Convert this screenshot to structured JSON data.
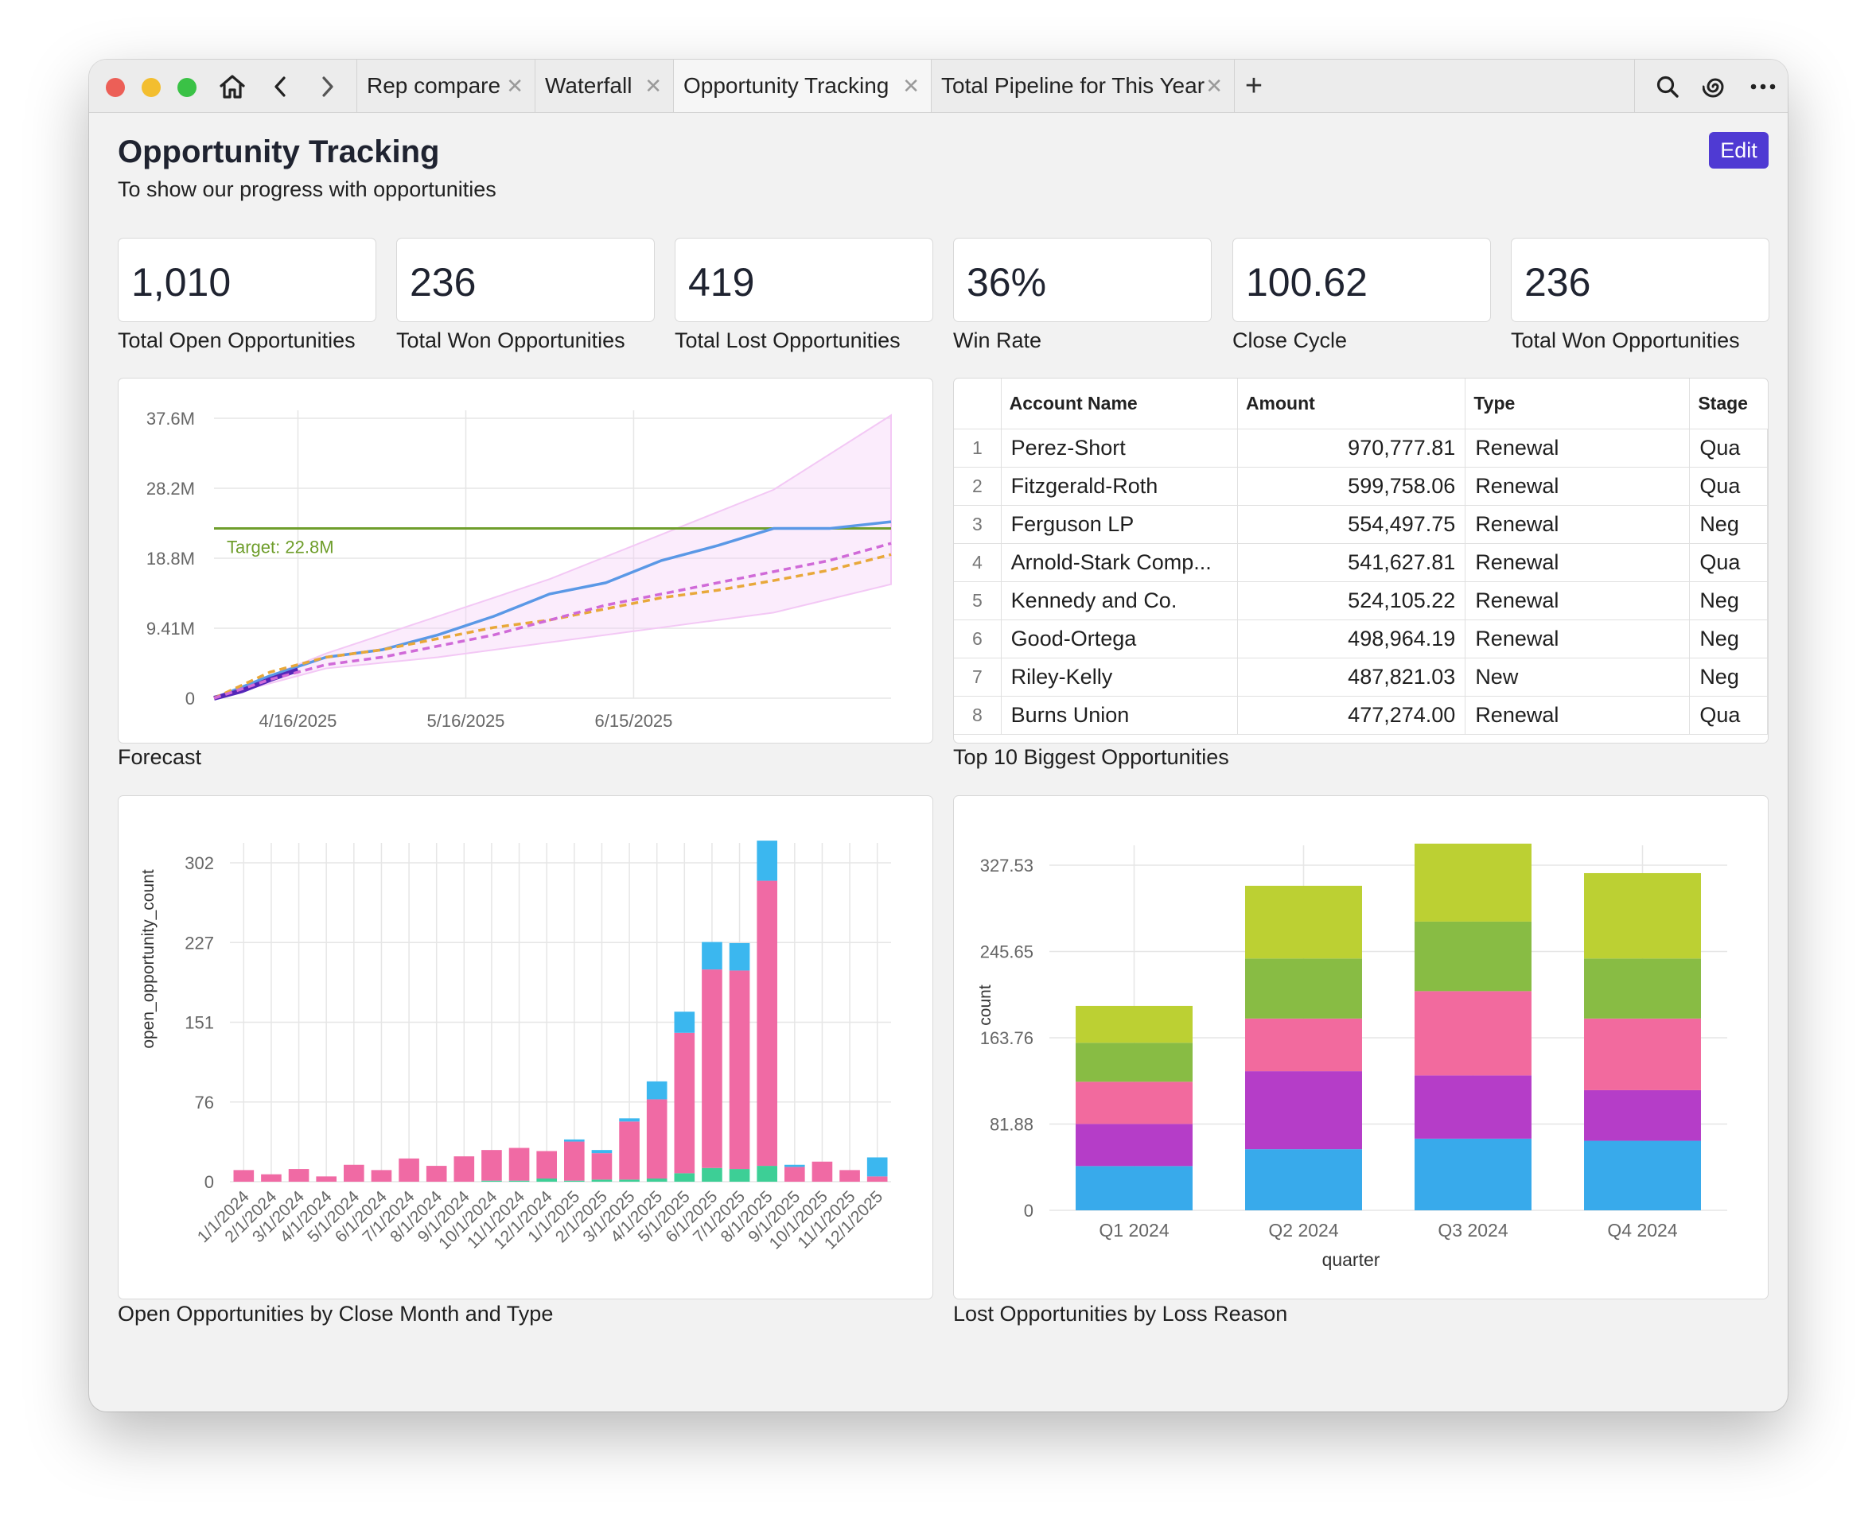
{
  "tabs": [
    {
      "label": "Rep compare"
    },
    {
      "label": "Waterfall"
    },
    {
      "label": "Opportunity Tracking"
    },
    {
      "label": "Total Pipeline for This Year"
    }
  ],
  "header": {
    "title": "Opportunity Tracking",
    "subtitle": "To show our progress with opportunities",
    "edit_label": "Edit"
  },
  "kpis": [
    {
      "value": "1,010",
      "label": "Total Open Opportunities"
    },
    {
      "value": "236",
      "label": "Total Won Opportunities"
    },
    {
      "value": "419",
      "label": "Total Lost Opportunities"
    },
    {
      "value": "36%",
      "label": "Win Rate"
    },
    {
      "value": "100.62",
      "label": "Close Cycle"
    },
    {
      "value": "236",
      "label": "Total Won Opportunities"
    }
  ],
  "cards": {
    "forecast": "Forecast",
    "top10": "Top 10 Biggest Opportunities",
    "open_by_month": "Open Opportunities by Close Month and Type",
    "lost_by_reason": "Lost Opportunities by Loss Reason"
  },
  "table": {
    "columns": [
      "Account Name",
      "Amount",
      "Type",
      "Stage"
    ],
    "rows": [
      {
        "idx": "1",
        "account": "Perez-Short",
        "amount": "970,777.81",
        "type": "Renewal",
        "stage": "Qua"
      },
      {
        "idx": "2",
        "account": "Fitzgerald-Roth",
        "amount": "599,758.06",
        "type": "Renewal",
        "stage": "Qua"
      },
      {
        "idx": "3",
        "account": "Ferguson LP",
        "amount": "554,497.75",
        "type": "Renewal",
        "stage": "Neg"
      },
      {
        "idx": "4",
        "account": "Arnold-Stark Comp...",
        "amount": "541,627.81",
        "type": "Renewal",
        "stage": "Qua"
      },
      {
        "idx": "5",
        "account": "Kennedy and Co.",
        "amount": "524,105.22",
        "type": "Renewal",
        "stage": "Neg"
      },
      {
        "idx": "6",
        "account": "Good-Ortega",
        "amount": "498,964.19",
        "type": "Renewal",
        "stage": "Neg"
      },
      {
        "idx": "7",
        "account": "Riley-Kelly",
        "amount": "487,821.03",
        "type": "New",
        "stage": "Neg"
      },
      {
        "idx": "8",
        "account": "Burns Union",
        "amount": "477,274.00",
        "type": "Renewal",
        "stage": "Qua"
      }
    ]
  },
  "chart_data": [
    {
      "type": "line",
      "x_ticks": [
        "4/16/2025",
        "5/16/2025",
        "6/15/2025"
      ],
      "y_ticks": [
        "0",
        "9.41M",
        "18.8M",
        "28.2M",
        "37.6M"
      ],
      "ylim": [
        0,
        37.6
      ],
      "x_range": [
        "4/1/2025",
        "7/31/2025"
      ],
      "annotation": "Target: 22.8M",
      "target": 22.8,
      "series": [
        {
          "color": "#5a98e6",
          "style": "solid",
          "x": [
            0,
            10,
            20,
            30,
            40,
            50,
            60,
            70,
            80,
            90,
            100,
            110,
            121
          ],
          "y": [
            0,
            3.0,
            5.5,
            6.5,
            8.5,
            11.0,
            14.0,
            15.5,
            18.5,
            20.5,
            22.8,
            22.8,
            23.7
          ]
        },
        {
          "color": "#5426b8",
          "style": "solid",
          "x": [
            0,
            5,
            10,
            15
          ],
          "y": [
            0,
            1.0,
            2.5,
            3.8
          ]
        },
        {
          "color": "#e8a83a",
          "style": "dashed",
          "x": [
            0,
            10,
            20,
            30,
            40,
            50,
            60,
            70,
            80,
            90,
            100,
            110,
            121
          ],
          "y": [
            0,
            3.5,
            5.5,
            6.5,
            8.0,
            9.5,
            10.5,
            12.0,
            13.5,
            14.5,
            15.8,
            17.2,
            19.3
          ]
        },
        {
          "color": "#d06ad8",
          "style": "dashed",
          "x": [
            0,
            10,
            20,
            30,
            40,
            50,
            60,
            70,
            80,
            90,
            100,
            110,
            121
          ],
          "y": [
            0,
            2.5,
            4.5,
            5.5,
            7.0,
            8.5,
            10.5,
            12.5,
            14.0,
            15.5,
            17.0,
            18.5,
            20.8
          ]
        }
      ],
      "band": {
        "color": "#f3c8f5",
        "x": [
          0,
          20,
          40,
          60,
          80,
          100,
          121
        ],
        "upper": [
          0,
          6,
          11,
          16,
          22,
          28,
          38
        ],
        "lower": [
          0,
          4,
          5.5,
          7.5,
          9.5,
          11.5,
          15.3
        ]
      }
    },
    {
      "type": "bar",
      "ylabel": "open_opportunity_count",
      "y_ticks": [
        "0",
        "76",
        "151",
        "227",
        "302"
      ],
      "ylim": [
        0,
        302
      ],
      "categories": [
        "1/1/2024",
        "2/1/2024",
        "3/1/2024",
        "4/1/2024",
        "5/1/2024",
        "6/1/2024",
        "7/1/2024",
        "8/1/2024",
        "9/1/2024",
        "10/1/2024",
        "11/1/2024",
        "12/1/2024",
        "1/1/2025",
        "2/1/2025",
        "3/1/2025",
        "4/1/2025",
        "5/1/2025",
        "6/1/2025",
        "7/1/2025",
        "8/1/2025",
        "9/1/2025",
        "10/1/2025",
        "11/1/2025",
        "12/1/2025"
      ],
      "series": [
        {
          "color": "#3dcf96",
          "values": [
            0,
            0,
            0,
            0,
            0,
            0,
            0,
            0,
            0,
            1,
            1,
            3,
            1,
            2,
            2,
            3,
            8,
            13,
            12,
            15,
            0,
            0,
            0,
            0
          ]
        },
        {
          "color": "#f06aa4",
          "values": [
            11,
            7,
            12,
            5,
            16,
            11,
            22,
            15,
            24,
            29,
            31,
            26,
            37,
            25,
            55,
            75,
            133,
            188,
            188,
            270,
            14,
            19,
            11,
            5
          ]
        },
        {
          "color": "#3bb7ef",
          "values": [
            0,
            0,
            0,
            0,
            0,
            0,
            0,
            0,
            0,
            0,
            0,
            0,
            2,
            3,
            3,
            17,
            20,
            26,
            26,
            38,
            2,
            0,
            0,
            18
          ]
        }
      ]
    },
    {
      "type": "bar",
      "xlabel": "quarter",
      "ylabel": "count",
      "y_ticks": [
        "0",
        "81.88",
        "163.76",
        "245.65",
        "327.53"
      ],
      "ylim": [
        0,
        327.53
      ],
      "categories": [
        "Q1 2024",
        "Q2 2024",
        "Q3 2024",
        "Q4 2024"
      ],
      "series": [
        {
          "color": "#38aaeb",
          "values": [
            42,
            58,
            68,
            66
          ]
        },
        {
          "color": "#b53dc8",
          "values": [
            40,
            74,
            60,
            48
          ]
        },
        {
          "color": "#f26a9e",
          "values": [
            40,
            50,
            80,
            68
          ]
        },
        {
          "color": "#88bc44",
          "values": [
            37,
            57,
            66,
            57
          ]
        },
        {
          "color": "#bcd033",
          "values": [
            35,
            69,
            74,
            81
          ]
        }
      ]
    }
  ]
}
